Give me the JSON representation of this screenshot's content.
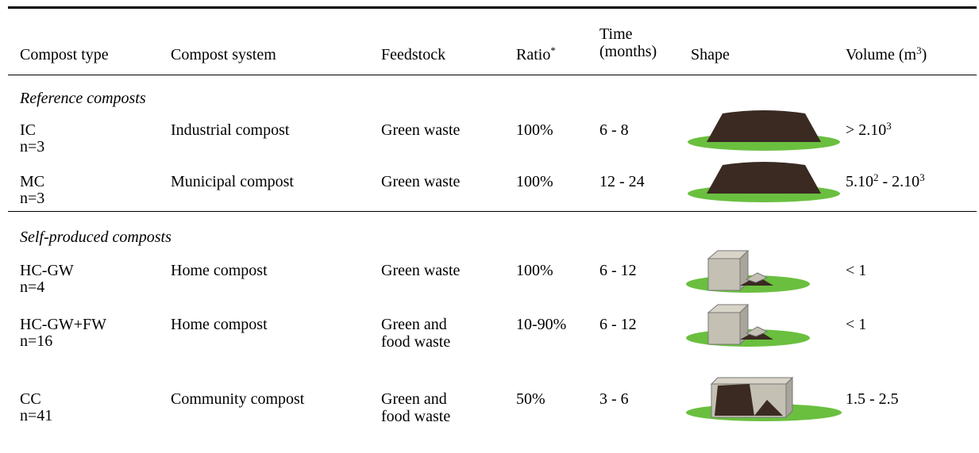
{
  "table": {
    "header": {
      "type": [
        {
          "text": "Compost type"
        }
      ],
      "system": [
        {
          "text": "Compost system"
        }
      ],
      "feedstock": [
        {
          "text": "Feedstock"
        }
      ],
      "ratio": [
        {
          "text": "Ratio"
        },
        {
          "sup": "*"
        }
      ],
      "time": [
        {
          "text": "Time (months)"
        }
      ],
      "shape": [
        {
          "text": "Shape"
        }
      ],
      "volume": [
        {
          "text": "Volume (m"
        },
        {
          "sup": "3"
        },
        {
          "text": ")"
        }
      ]
    },
    "sections": [
      {
        "title": "Reference composts",
        "rows": [
          {
            "type": "IC",
            "n": "n=3",
            "system": "Industrial compost",
            "feedstock": "Green waste",
            "ratio": "100%",
            "time": "6 - 8",
            "volume": [
              {
                "text": "> 2.10"
              },
              {
                "sup": "3"
              }
            ]
          },
          {
            "type": "MC",
            "n": "n=3",
            "system": "Municipal compost",
            "feedstock": "Green waste",
            "ratio": "100%",
            "time": "12 - 24",
            "volume": [
              {
                "text": "5.10"
              },
              {
                "sup": "2"
              },
              {
                "text": " - 2.10"
              },
              {
                "sup": "3"
              }
            ]
          }
        ]
      },
      {
        "title": "Self-produced composts",
        "rows": [
          {
            "type": "HC-GW",
            "n": "n=4",
            "system": "Home compost",
            "feedstock": "Green waste",
            "ratio": "100%",
            "time": "6 - 12",
            "volume": [
              {
                "text": "< 1"
              }
            ]
          },
          {
            "type": "HC-GW+FW",
            "n": "n=16",
            "system": "Home compost",
            "feedstock": "Green and food waste",
            "ratio": "10-90%",
            "time": "6 - 12",
            "volume": [
              {
                "text": "< 1"
              }
            ]
          },
          {
            "type": "CC",
            "n": "n=41",
            "system": "Community compost",
            "feedstock": "Green and food waste",
            "ratio": "50%",
            "time": "3 - 6",
            "volume": [
              {
                "text": "1.5 - 2.5"
              }
            ]
          }
        ]
      }
    ]
  }
}
